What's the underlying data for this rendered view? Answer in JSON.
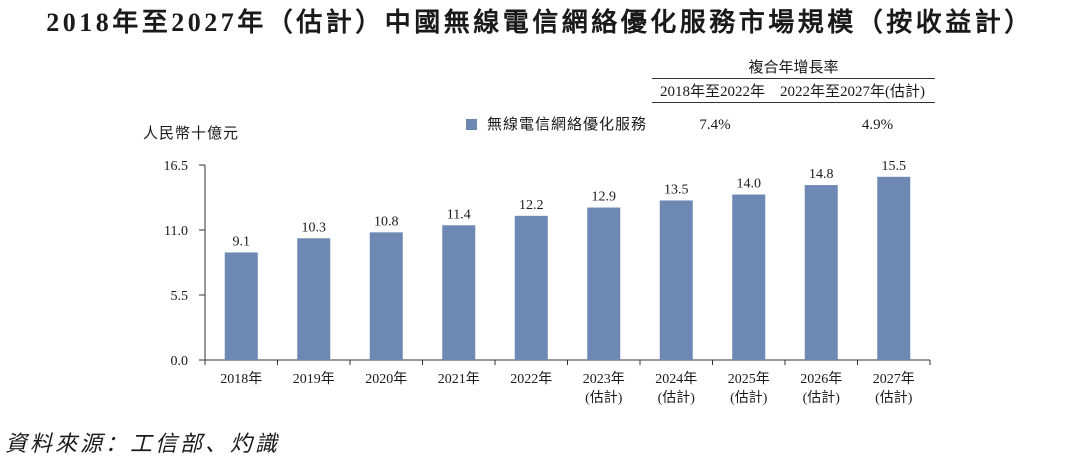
{
  "chart_data": {
    "type": "bar",
    "title": "2018年至2027年（估計）中國無線電信網絡優化服務市場規模（按收益計）",
    "xlabel": "",
    "ylabel": "人民幣十億元",
    "categories": [
      "2018年",
      "2019年",
      "2020年",
      "2021年",
      "2022年",
      "2023年(估計)",
      "2024年(估計)",
      "2025年(估計)",
      "2026年(估計)",
      "2027年(估計)"
    ],
    "series": [
      {
        "name": "無線電信網絡優化服務",
        "values": [
          9.1,
          10.3,
          10.8,
          11.4,
          12.2,
          12.9,
          13.5,
          14.0,
          14.8,
          15.5
        ]
      }
    ],
    "ylim": [
      0,
      16.5
    ],
    "yticks": [
      0,
      5.5,
      11.0,
      16.5
    ],
    "grid": false,
    "legend": "top-center",
    "data_labels": true
  },
  "cagr_table": {
    "header": "複合年增長率",
    "periods": [
      "2018年至2022年",
      "2022年至2027年(估計)"
    ],
    "values": [
      "7.4%",
      "4.9%"
    ]
  },
  "source": "資料來源：工信部、灼識",
  "colors": {
    "bar": "#6c88b3",
    "text": "#1a1a1a",
    "axis": "#333333"
  }
}
